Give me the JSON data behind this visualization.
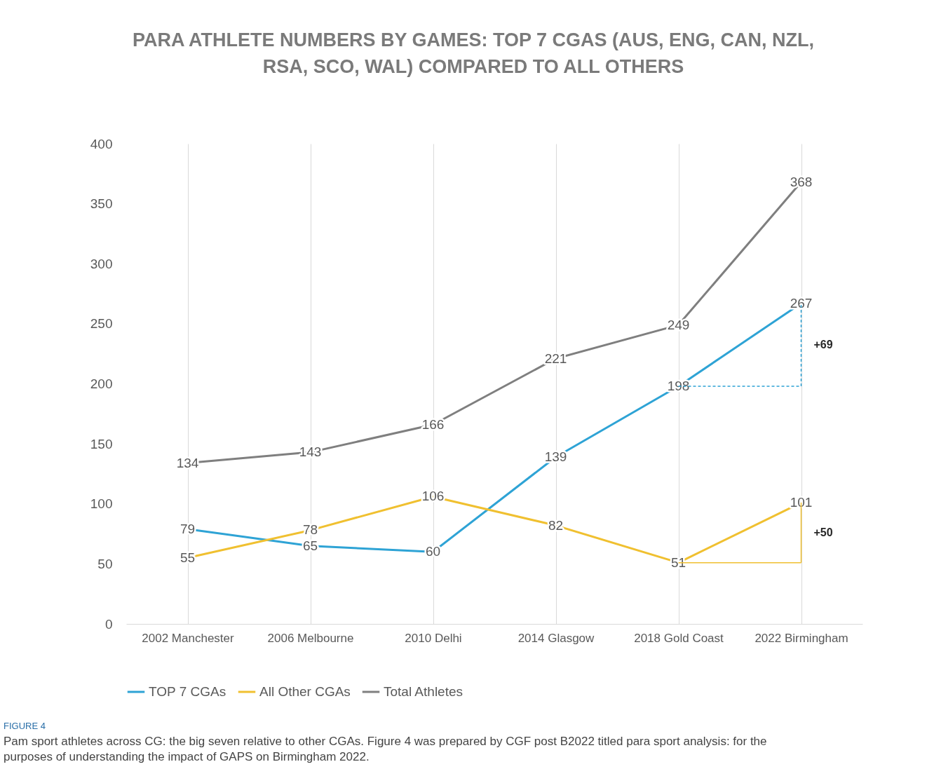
{
  "chart_data": {
    "type": "line",
    "title": "PARA ATHLETE NUMBERS BY GAMES: TOP 7 CGAS (AUS, ENG, CAN, NZL, RSA, SCO, WAL) COMPARED TO ALL OTHERS",
    "categories": [
      "2002 Manchester",
      "2006 Melbourne",
      "2010 Delhi",
      "2014 Glasgow",
      "2018 Gold Coast",
      "2022 Birmingham"
    ],
    "series": [
      {
        "name": "TOP 7 CGAs",
        "color": "#2ea3d5",
        "values": [
          79,
          65,
          60,
          139,
          198,
          267
        ]
      },
      {
        "name": "All Other CGAs",
        "color": "#f0c030",
        "values": [
          55,
          78,
          106,
          82,
          51,
          101
        ]
      },
      {
        "name": "Total Athletes",
        "color": "#7f7f7f",
        "values": [
          134,
          143,
          166,
          221,
          249,
          368
        ]
      }
    ],
    "ylim": [
      0,
      400
    ],
    "yticks": [
      0,
      50,
      100,
      150,
      200,
      250,
      300,
      350,
      400
    ],
    "grid": "x",
    "legend": "bottom",
    "data_labels": true,
    "marker": "none",
    "line_style": "solid",
    "annotations": [
      "+69",
      "+50",
      "FIGURE 4",
      "Pam sport athletes across CG: the big seven relative to other CGAs. Figure 4 was prepared by CGF post B2022 titled para sport analysis: for the purposes of understanding the impact of GAPS on Birmingham 2022."
    ]
  }
}
